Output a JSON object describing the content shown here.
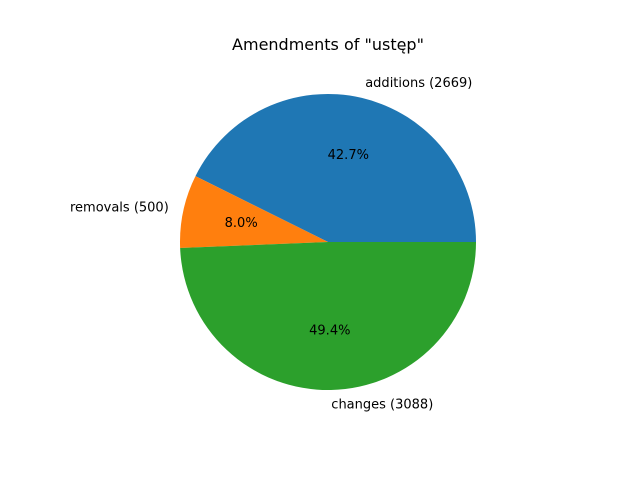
{
  "chart_data": {
    "type": "pie",
    "title": "Amendments of \"ustęp\"",
    "slices": [
      {
        "label": "additions (2669)",
        "value": 2669,
        "pct_label": "42.7%",
        "color": "#1f77b4"
      },
      {
        "label": "removals (500)",
        "value": 500,
        "pct_label": "8.0%",
        "color": "#ff7f0e"
      },
      {
        "label": "changes (3088)",
        "value": 3088,
        "pct_label": "49.4%",
        "color": "#2ca02c"
      }
    ],
    "start_angle_deg": 0,
    "direction": "counterclockwise"
  }
}
